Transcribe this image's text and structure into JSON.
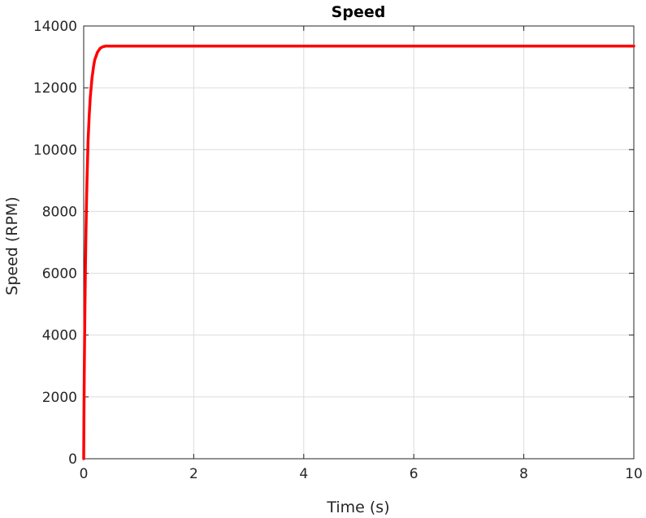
{
  "chart_data": {
    "type": "line",
    "title": "Speed",
    "xlabel": "Time (s)",
    "ylabel": "Speed (RPM)",
    "xlim": [
      0,
      10
    ],
    "ylim": [
      0,
      14000
    ],
    "x_ticks": [
      "0",
      "2",
      "4",
      "6",
      "8",
      "10"
    ],
    "y_ticks": [
      "0",
      "2000",
      "4000",
      "6000",
      "8000",
      "10000",
      "12000",
      "14000"
    ],
    "grid": true,
    "series": [
      {
        "color": "#ff0000",
        "x": [
          0,
          0.005,
          0.01,
          0.02,
          0.03,
          0.04,
          0.05,
          0.06,
          0.08,
          0.1,
          0.12,
          0.15,
          0.18,
          0.2,
          0.25,
          0.3,
          0.35,
          0.4,
          0.5,
          1,
          2,
          4,
          6,
          8,
          10
        ],
        "y": [
          0,
          1500,
          2700,
          4500,
          6000,
          7200,
          8200,
          9000,
          10300,
          11100,
          11700,
          12300,
          12700,
          12900,
          13150,
          13280,
          13330,
          13350,
          13350,
          13350,
          13350,
          13350,
          13350,
          13350,
          13350
        ]
      }
    ]
  }
}
